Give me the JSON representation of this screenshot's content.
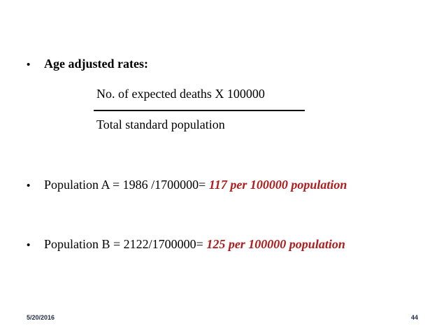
{
  "bullets": {
    "symbol": "•",
    "age_adjusted": {
      "label": "Age adjusted rates:"
    },
    "population_a": {
      "text": "Population A = 1986 /1700000= ",
      "result": "117 per 100000 population"
    },
    "population_b": {
      "text": "Population B = 2122/1700000= ",
      "result": "125 per 100000 population"
    }
  },
  "formula": {
    "numerator": "No. of expected deaths X 100000",
    "denominator": "Total standard population"
  },
  "footer": {
    "date": "5/20/2016",
    "page_number": "44"
  },
  "colors": {
    "highlight": "#b01c1c",
    "footer_text": "#1f2a44"
  }
}
